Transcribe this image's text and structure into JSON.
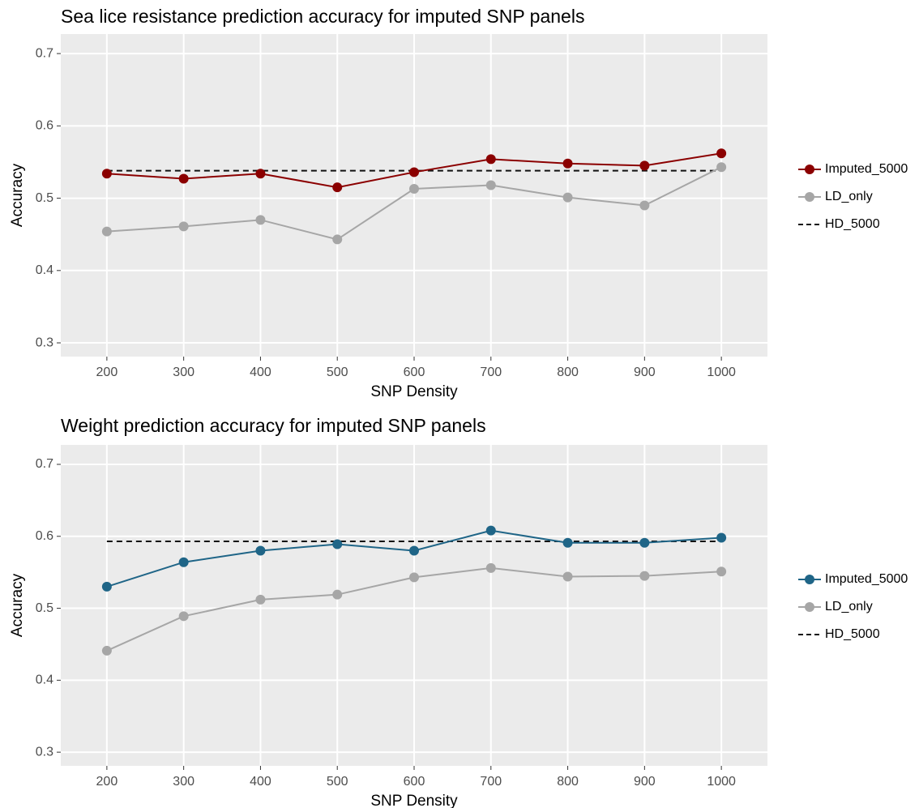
{
  "chart_data": [
    {
      "type": "line",
      "title": "Sea lice resistance prediction accuracy for imputed SNP panels",
      "x_label": "SNP Density",
      "y_label": "Accuracy",
      "categories": [
        "200",
        "300",
        "400",
        "500",
        "600",
        "700",
        "800",
        "900",
        "1000"
      ],
      "series": [
        {
          "name": "Imputed_5000",
          "color": "#8b0000",
          "linestyle": "solid",
          "markers": true,
          "values": [
            0.534,
            0.527,
            0.534,
            0.515,
            0.536,
            0.554,
            0.548,
            0.545,
            0.562
          ]
        },
        {
          "name": "LD_only",
          "color": "#a6a6a6",
          "linestyle": "solid",
          "markers": true,
          "values": [
            0.454,
            0.461,
            0.47,
            0.443,
            0.513,
            0.518,
            0.501,
            0.49,
            0.543
          ]
        },
        {
          "name": "HD_5000",
          "color": "#111111",
          "linestyle": "dashed",
          "markers": false,
          "values": [
            0.538,
            0.538,
            0.538,
            0.538,
            0.538,
            0.538,
            0.538,
            0.538,
            0.538
          ]
        }
      ],
      "ylim": [
        0.281,
        0.727
      ],
      "yticks": [
        0.3,
        0.4,
        0.5,
        0.6,
        0.7
      ],
      "grid": true,
      "legend": "right"
    },
    {
      "type": "line",
      "title": "Weight prediction accuracy for imputed SNP panels",
      "x_label": "SNP Density",
      "y_label": "Accuracy",
      "categories": [
        "200",
        "300",
        "400",
        "500",
        "600",
        "700",
        "800",
        "900",
        "1000"
      ],
      "series": [
        {
          "name": "Imputed_5000",
          "color": "#1f6587",
          "linestyle": "solid",
          "markers": true,
          "values": [
            0.53,
            0.564,
            0.58,
            0.589,
            0.58,
            0.608,
            0.591,
            0.591,
            0.598
          ]
        },
        {
          "name": "LD_only",
          "color": "#a6a6a6",
          "linestyle": "solid",
          "markers": true,
          "values": [
            0.441,
            0.489,
            0.512,
            0.519,
            0.543,
            0.556,
            0.544,
            0.545,
            0.551
          ]
        },
        {
          "name": "HD_5000",
          "color": "#111111",
          "linestyle": "dashed",
          "markers": false,
          "values": [
            0.593,
            0.593,
            0.593,
            0.593,
            0.593,
            0.593,
            0.593,
            0.593,
            0.593
          ]
        }
      ],
      "ylim": [
        0.281,
        0.727
      ],
      "yticks": [
        0.3,
        0.4,
        0.5,
        0.6,
        0.7
      ],
      "grid": true,
      "legend": "right"
    }
  ]
}
